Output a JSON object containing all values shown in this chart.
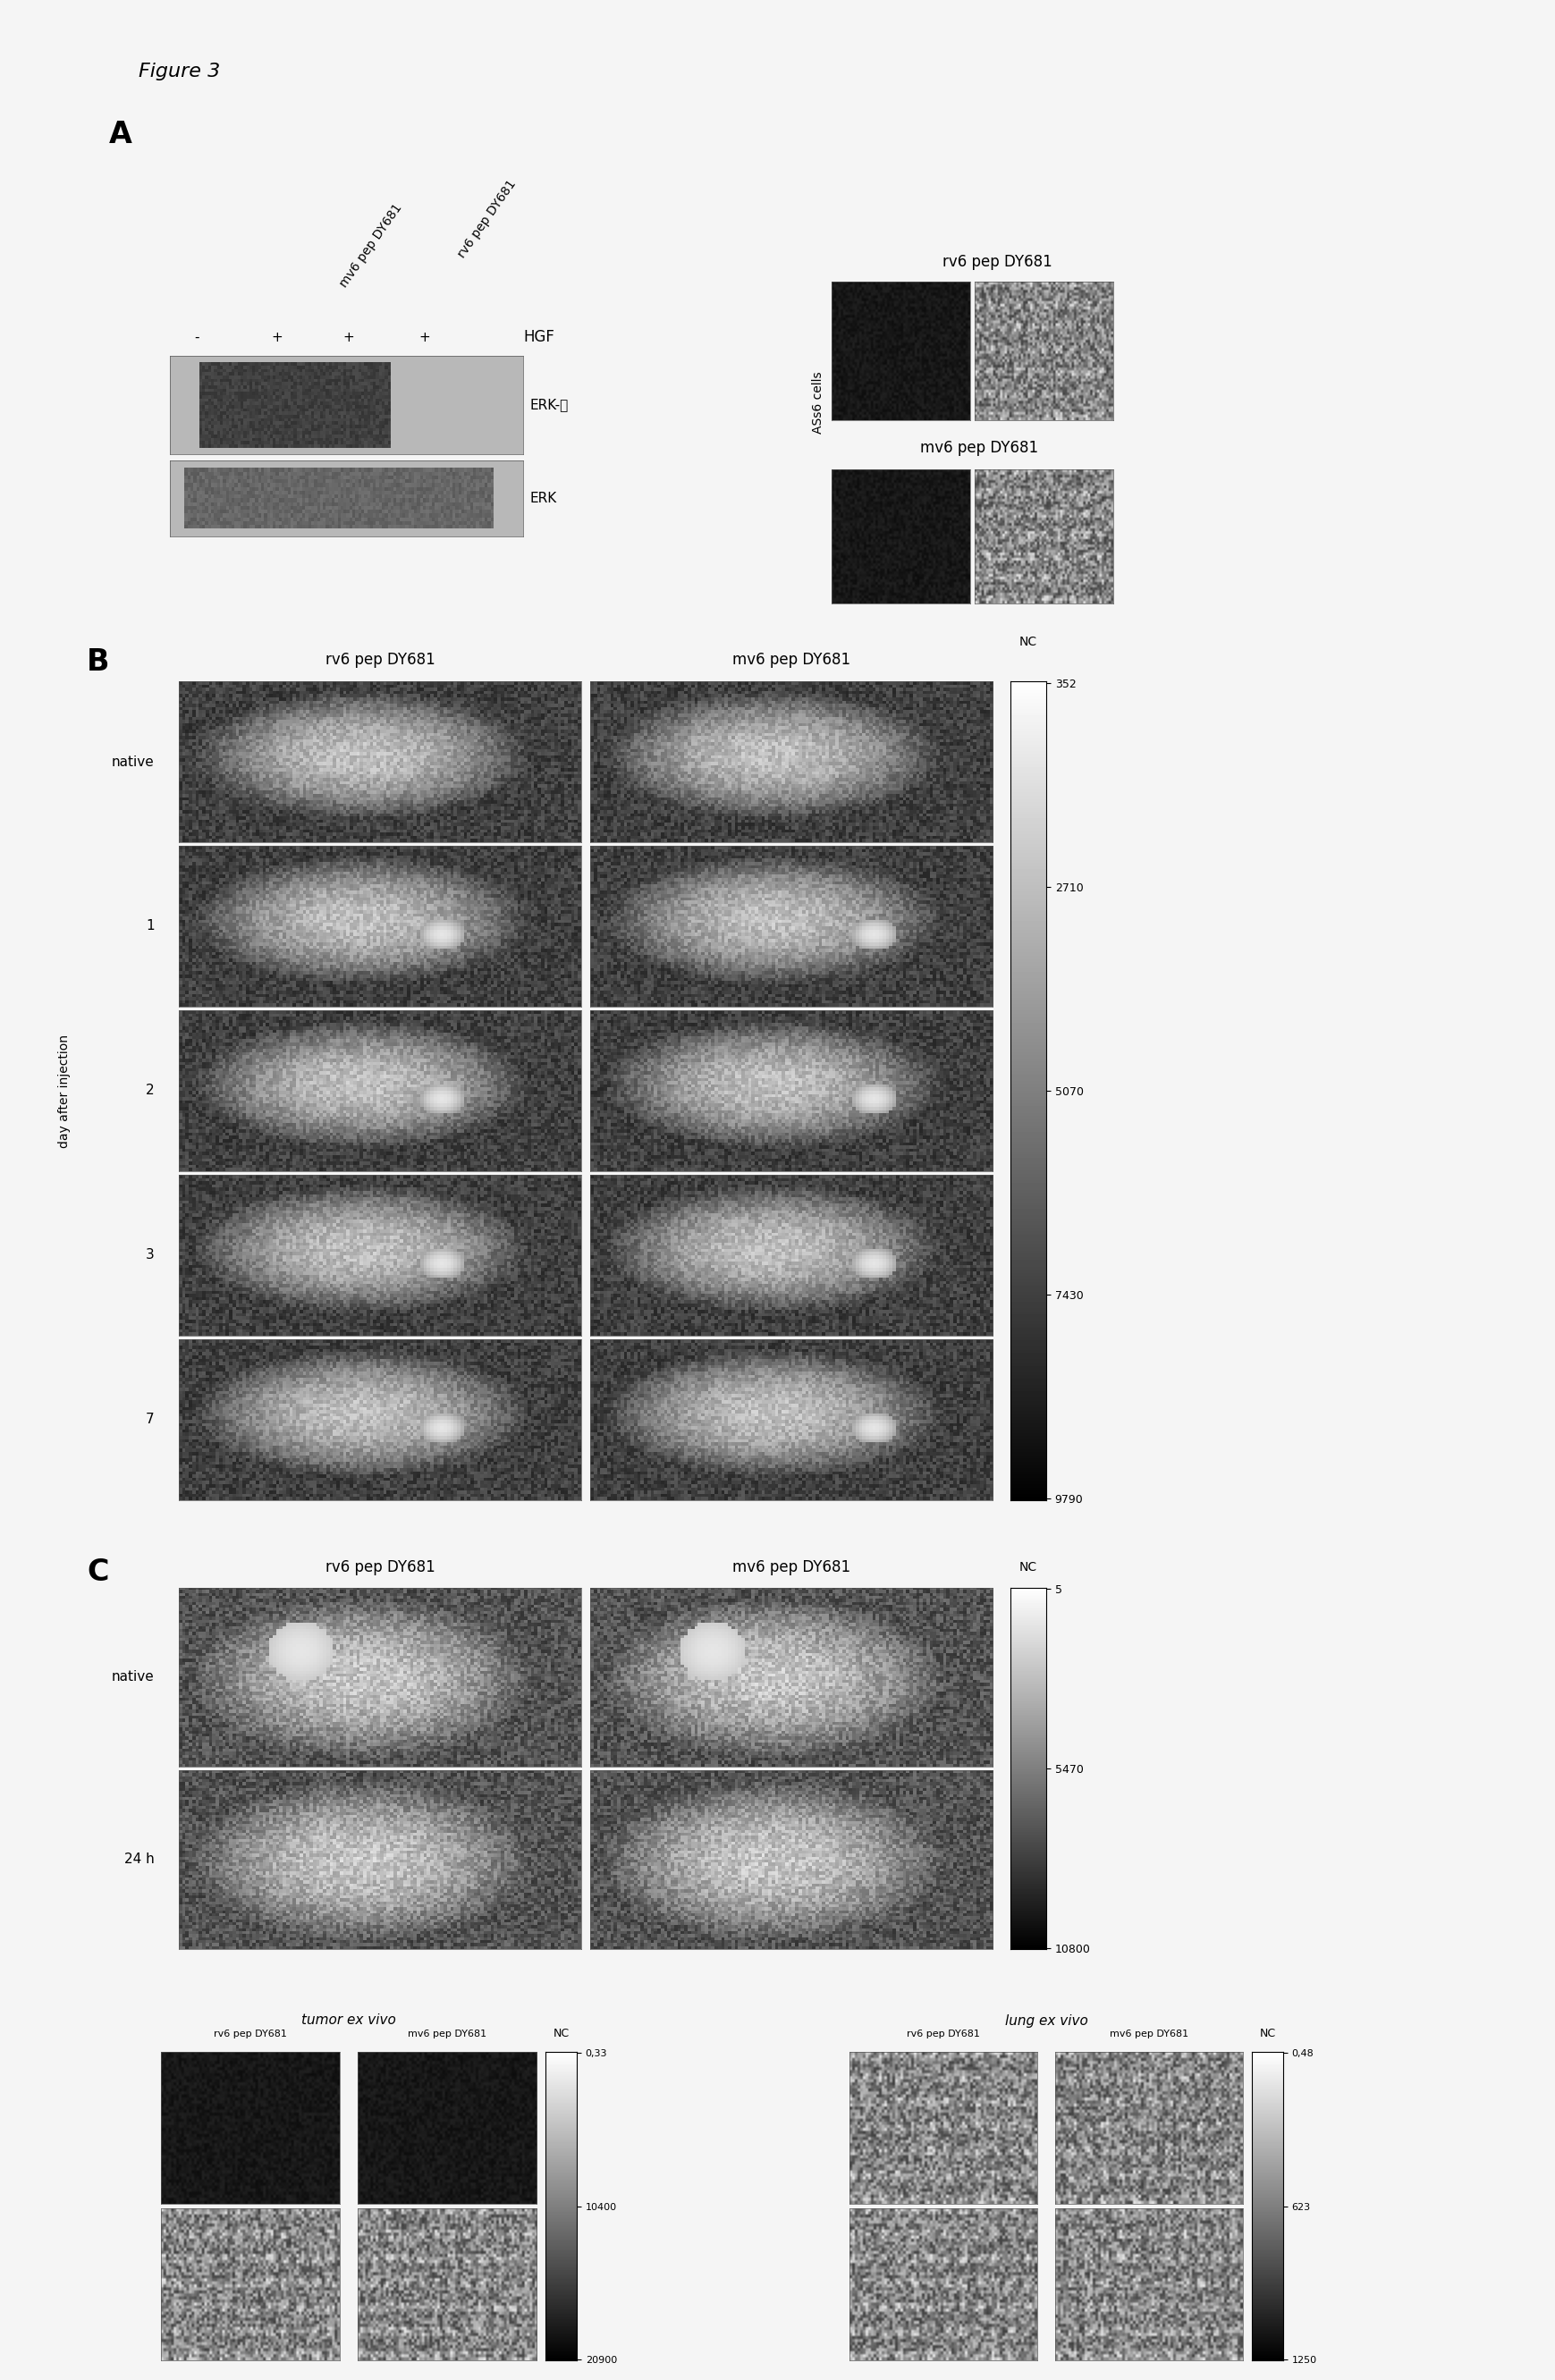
{
  "figure_label": "Figure 3",
  "panel_A_label": "A",
  "panel_B_label": "B",
  "panel_C_label": "C",
  "bg_color": "#f5f5f5",
  "panel_A": {
    "wb_items": [
      "-",
      "+",
      "+",
      "+"
    ],
    "wb_diag1": "mv6 pep DY681",
    "wb_diag2": "rv6 pep DY681",
    "hgf_label": "HGF",
    "band1_label": "ERK-ⓟ",
    "band2_label": "ERK",
    "cells_label": "ASs6 cells",
    "top_image_label": "rv6 pep DY681",
    "bottom_image_label": "mv6 pep DY681"
  },
  "panel_B": {
    "col1_label": "rv6 pep DY681",
    "col2_label": "mv6 pep DY681",
    "colorbar_label": "NC",
    "row_labels": [
      "native",
      "1",
      "2",
      "3",
      "7"
    ],
    "side_label": "day after injection",
    "colorbar_ticks": [
      "9790",
      "7430",
      "5070",
      "2710",
      "352"
    ]
  },
  "panel_C": {
    "col1_label": "rv6 pep DY681",
    "col2_label": "mv6 pep DY681",
    "colorbar_label": "NC",
    "row_labels": [
      "native",
      "24 h"
    ],
    "colorbar_ticks": [
      "10800",
      "5470",
      "5"
    ],
    "sub": {
      "tumor_title": "tumor ex vivo",
      "lung_title": "lung ex vivo",
      "tumor_col1": "rv6 pep DY681",
      "tumor_col2": "mv6 pep DY681",
      "lung_col1": "rv6 pep DY681",
      "lung_col2": "mv6 pep DY681",
      "tumor_cb_ticks": [
        "20900",
        "10400",
        "0,33"
      ],
      "lung_cb_ticks": [
        "1250",
        "623",
        "0,48"
      ],
      "tumor_cb_label": "NC",
      "lung_cb_label": "NC"
    }
  }
}
